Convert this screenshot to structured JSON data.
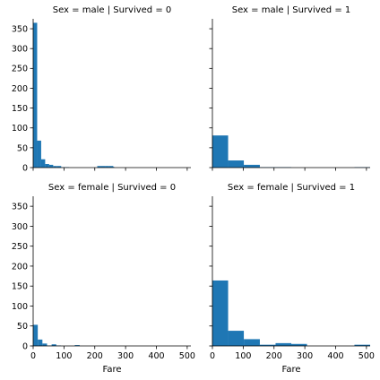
{
  "chart_data": {
    "type": "histogram-grid",
    "xlim": [
      0,
      512
    ],
    "ylim": [
      0,
      375
    ],
    "x_ticks": [
      0,
      100,
      200,
      300,
      400,
      500
    ],
    "y_ticks": [
      0,
      50,
      100,
      150,
      200,
      250,
      300,
      350
    ],
    "xlabel": "Fare",
    "bar_color": "#1f77b4",
    "panels": [
      {
        "title": "Sex = male | Survived = 0",
        "bins": [
          {
            "x0": 0,
            "x1": 13,
            "count": 365
          },
          {
            "x0": 13,
            "x1": 26,
            "count": 68
          },
          {
            "x0": 26,
            "x1": 39,
            "count": 21
          },
          {
            "x0": 39,
            "x1": 52,
            "count": 9
          },
          {
            "x0": 52,
            "x1": 65,
            "count": 7
          },
          {
            "x0": 65,
            "x1": 78,
            "count": 4
          },
          {
            "x0": 78,
            "x1": 91,
            "count": 4
          },
          {
            "x0": 91,
            "x1": 104,
            "count": 1
          },
          {
            "x0": 104,
            "x1": 117,
            "count": 1
          },
          {
            "x0": 208,
            "x1": 221,
            "count": 4
          },
          {
            "x0": 221,
            "x1": 234,
            "count": 4
          },
          {
            "x0": 234,
            "x1": 247,
            "count": 4
          },
          {
            "x0": 247,
            "x1": 260,
            "count": 4
          },
          {
            "x0": 260,
            "x1": 263,
            "count": 2
          }
        ]
      },
      {
        "title": "Sex = male | Survived = 1",
        "bins": [
          {
            "x0": 0,
            "x1": 51,
            "count": 81
          },
          {
            "x0": 51,
            "x1": 102,
            "count": 18
          },
          {
            "x0": 102,
            "x1": 154,
            "count": 7
          },
          {
            "x0": 154,
            "x1": 205,
            "count": 1
          },
          {
            "x0": 205,
            "x1": 256,
            "count": 1
          },
          {
            "x0": 461,
            "x1": 512,
            "count": 1
          }
        ]
      },
      {
        "title": "Sex = female | Survived = 0",
        "bins": [
          {
            "x0": 0,
            "x1": 15,
            "count": 53
          },
          {
            "x0": 15,
            "x1": 30,
            "count": 16
          },
          {
            "x0": 30,
            "x1": 45,
            "count": 6
          },
          {
            "x0": 45,
            "x1": 60,
            "count": 1
          },
          {
            "x0": 60,
            "x1": 75,
            "count": 4
          },
          {
            "x0": 75,
            "x1": 90,
            "count": 1
          },
          {
            "x0": 135,
            "x1": 151,
            "count": 2
          }
        ]
      },
      {
        "title": "Sex = female | Survived = 1",
        "bins": [
          {
            "x0": 0,
            "x1": 51,
            "count": 164
          },
          {
            "x0": 51,
            "x1": 102,
            "count": 38
          },
          {
            "x0": 102,
            "x1": 154,
            "count": 17
          },
          {
            "x0": 154,
            "x1": 205,
            "count": 3
          },
          {
            "x0": 205,
            "x1": 256,
            "count": 7
          },
          {
            "x0": 256,
            "x1": 307,
            "count": 5
          },
          {
            "x0": 461,
            "x1": 512,
            "count": 3
          }
        ]
      }
    ]
  }
}
